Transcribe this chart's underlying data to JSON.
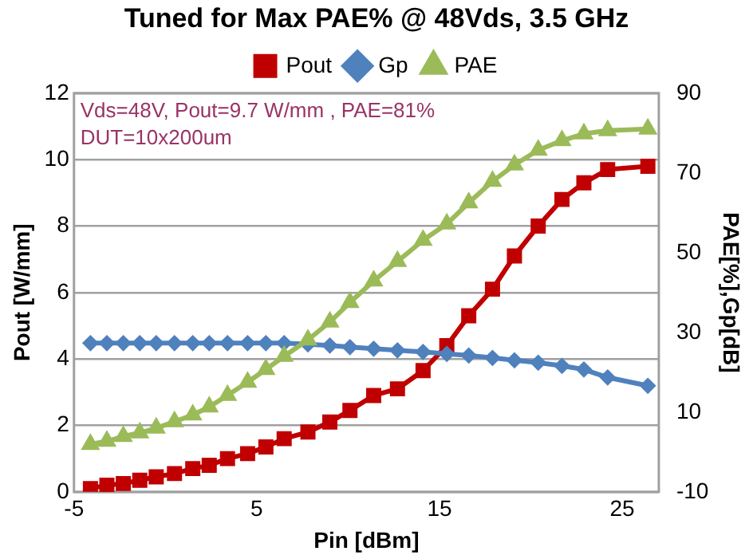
{
  "chart_data": {
    "type": "line",
    "title": "Tuned for Max PAE% @ 48Vds, 3.5 GHz",
    "xlabel": "Pin [dBm]",
    "ylabel": "Pout [W/mm]",
    "y2label": "PAE[%],Gp[dB]",
    "annotations": [
      "Vds=48V, Pout=9.7 W/mm , PAE=81%",
      "DUT=10x200um"
    ],
    "x": [
      -4.1,
      -3.2,
      -2.3,
      -1.4,
      -0.5,
      0.5,
      1.5,
      2.4,
      3.4,
      4.5,
      5.5,
      6.5,
      7.8,
      9.0,
      10.1,
      11.4,
      12.7,
      14.1,
      15.4,
      16.6,
      17.9,
      19.1,
      20.4,
      21.7,
      22.9,
      24.2,
      26.4
    ],
    "series": [
      {
        "name": "Pout",
        "color": "#c00000",
        "marker": "square",
        "values": [
          0.1,
          0.2,
          0.25,
          0.35,
          0.45,
          0.55,
          0.7,
          0.8,
          1.0,
          1.15,
          1.35,
          1.6,
          1.8,
          2.1,
          2.45,
          2.9,
          3.1,
          3.65,
          4.4,
          5.3,
          6.1,
          7.1,
          8.0,
          8.8,
          9.3,
          9.7,
          9.8
        ]
      },
      {
        "name": "Gp",
        "color": "#4f81bd",
        "marker": "diamond",
        "axis": "y2",
        "values": [
          27.3,
          27.3,
          27.3,
          27.3,
          27.3,
          27.3,
          27.3,
          27.3,
          27.3,
          27.3,
          27.3,
          27.3,
          27.0,
          26.7,
          26.3,
          25.9,
          25.5,
          25.1,
          24.6,
          24.2,
          23.6,
          23.0,
          22.4,
          21.6,
          20.7,
          18.7,
          16.6
        ]
      },
      {
        "name": "PAE",
        "color": "#9bbb59",
        "marker": "triangle",
        "axis": "y2",
        "values": [
          1.9,
          2.7,
          3.9,
          4.8,
          6.0,
          7.6,
          9.3,
          11.3,
          14.2,
          17.5,
          20.7,
          24.0,
          28.1,
          32.6,
          37.5,
          42.9,
          47.8,
          53.1,
          57.2,
          62.5,
          67.9,
          72.0,
          75.7,
          78.1,
          79.8,
          80.6,
          81.0
        ]
      }
    ],
    "xlim": [
      -5,
      27
    ],
    "xticks": [
      -5,
      5,
      15,
      25
    ],
    "ylim": [
      0,
      12
    ],
    "yticks": [
      0,
      2,
      4,
      6,
      8,
      10,
      12
    ],
    "y2lim": [
      -10,
      90
    ],
    "y2ticks": [
      -10,
      10,
      30,
      50,
      70,
      90
    ],
    "grid": "y",
    "legend": "top",
    "line_style": "solid"
  }
}
